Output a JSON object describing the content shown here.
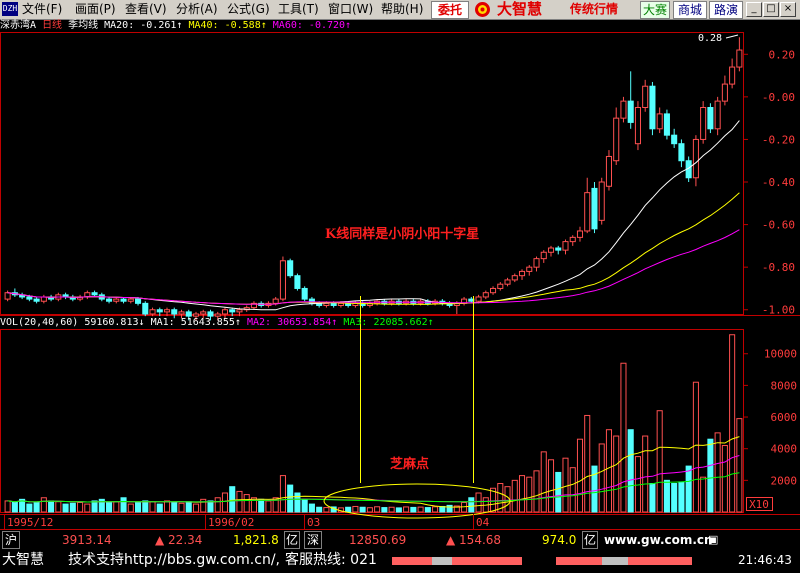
{
  "menu": {
    "items": [
      "文件(F)",
      "画面(P)",
      "查看(V)",
      "分析(A)",
      "公式(G)",
      "工具(T)",
      "窗口(W)",
      "帮助(H)"
    ],
    "weituo": "委托",
    "brand": "大智慧",
    "brand_sub": "传统行情",
    "buttons": [
      "大赛",
      "商城",
      "路演"
    ],
    "win_buttons": [
      "_",
      "□",
      "×"
    ]
  },
  "header": {
    "stock": "深赤湾A",
    "period": "日线",
    "avg_type": "季均线",
    "ma20_label": "MA20:",
    "ma20_value": "-0.261↑",
    "ma40_label": "MA40:",
    "ma40_value": "-0.588↑",
    "ma60_label": "MA60:",
    "ma60_value": "-0.720↑"
  },
  "vol_header": {
    "label": "VOL(20,40,60)",
    "value": "59160.813↓",
    "ma1_label": "MA1:",
    "ma1_value": "51643.855↑",
    "ma2_label": "MA2:",
    "ma2_value": "30653.854↑",
    "ma3_label": "MA3:",
    "ma3_value": "22085.662↑"
  },
  "colors": {
    "up": "#ff5050",
    "down": "#54ffff",
    "ma20": "#ffffff",
    "ma40": "#ffff00",
    "ma60": "#ff00ff",
    "grid": "#c00000",
    "axis_text": "#ff3c3c",
    "annot": "#ff2020"
  },
  "chart_data": [
    {
      "type": "candlestick",
      "title": "深赤湾A 日线",
      "y_axis_ticks": [
        "0.20",
        "-0.00",
        "-0.20",
        "-0.40",
        "-0.60",
        "-0.80",
        "-1.00"
      ],
      "y_range": [
        -1.02,
        0.3
      ],
      "x_labels": [
        "1995/12",
        "1996/02",
        "03",
        "04"
      ],
      "max_label": "0.28",
      "annotation": "K线同样是小阴小阳十字星",
      "series": [
        {
          "name": "MA20",
          "last_value": -0.261
        },
        {
          "name": "MA40",
          "last_value": -0.588
        },
        {
          "name": "MA60",
          "last_value": -0.72
        }
      ],
      "candles": [
        [
          -0.95,
          -0.92,
          -0.96,
          -0.91
        ],
        [
          -0.92,
          -0.93,
          -0.94,
          -0.9
        ],
        [
          -0.93,
          -0.94,
          -0.95,
          -0.92
        ],
        [
          -0.94,
          -0.95,
          -0.96,
          -0.93
        ],
        [
          -0.95,
          -0.96,
          -0.97,
          -0.94
        ],
        [
          -0.96,
          -0.94,
          -0.97,
          -0.93
        ],
        [
          -0.94,
          -0.95,
          -0.96,
          -0.93
        ],
        [
          -0.95,
          -0.93,
          -0.96,
          -0.92
        ],
        [
          -0.93,
          -0.94,
          -0.95,
          -0.92
        ],
        [
          -0.94,
          -0.95,
          -0.96,
          -0.93
        ],
        [
          -0.95,
          -0.94,
          -0.96,
          -0.93
        ],
        [
          -0.94,
          -0.92,
          -0.95,
          -0.91
        ],
        [
          -0.92,
          -0.93,
          -0.94,
          -0.91
        ],
        [
          -0.93,
          -0.95,
          -0.96,
          -0.92
        ],
        [
          -0.95,
          -0.96,
          -0.97,
          -0.94
        ],
        [
          -0.96,
          -0.95,
          -0.97,
          -0.94
        ],
        [
          -0.95,
          -0.96,
          -0.97,
          -0.94
        ],
        [
          -0.96,
          -0.95,
          -0.97,
          -0.94
        ],
        [
          -0.95,
          -0.97,
          -0.98,
          -0.94
        ],
        [
          -0.97,
          -1.02,
          -1.03,
          -0.96
        ],
        [
          -1.02,
          -1.0,
          -1.03,
          -0.99
        ],
        [
          -1.0,
          -1.01,
          -1.03,
          -0.99
        ],
        [
          -1.01,
          -1.0,
          -1.03,
          -0.99
        ],
        [
          -1.0,
          -1.02,
          -1.04,
          -0.99
        ],
        [
          -1.02,
          -1.01,
          -1.04,
          -1.0
        ],
        [
          -1.01,
          -1.03,
          -1.05,
          -1.0
        ],
        [
          -1.03,
          -1.02,
          -1.05,
          -1.01
        ],
        [
          -1.02,
          -1.01,
          -1.04,
          -1.0
        ],
        [
          -1.01,
          -1.03,
          -1.05,
          -1.0
        ],
        [
          -1.03,
          -1.02,
          -1.05,
          -1.01
        ],
        [
          -1.02,
          -1.0,
          -1.04,
          -0.99
        ],
        [
          -1.0,
          -1.01,
          -1.03,
          -0.99
        ],
        [
          -1.01,
          -1.0,
          -1.03,
          -0.99
        ],
        [
          -1.0,
          -0.99,
          -1.01,
          -0.98
        ],
        [
          -0.99,
          -0.97,
          -1.0,
          -0.96
        ],
        [
          -0.97,
          -0.98,
          -0.99,
          -0.96
        ],
        [
          -0.98,
          -0.97,
          -0.99,
          -0.96
        ],
        [
          -0.97,
          -0.95,
          -0.98,
          -0.94
        ],
        [
          -0.95,
          -0.77,
          -0.96,
          -0.75
        ],
        [
          -0.77,
          -0.84,
          -0.85,
          -0.76
        ],
        [
          -0.84,
          -0.9,
          -0.91,
          -0.83
        ],
        [
          -0.9,
          -0.95,
          -0.96,
          -0.89
        ],
        [
          -0.95,
          -0.97,
          -0.98,
          -0.94
        ],
        [
          -0.97,
          -0.98,
          -0.99,
          -0.96
        ],
        [
          -0.98,
          -0.97,
          -0.99,
          -0.96
        ],
        [
          -0.97,
          -0.98,
          -0.99,
          -0.96
        ],
        [
          -0.98,
          -0.97,
          -0.99,
          -0.96
        ],
        [
          -0.97,
          -0.98,
          -0.99,
          -0.96
        ],
        [
          -0.98,
          -0.97,
          -0.99,
          -0.96
        ],
        [
          -0.97,
          -0.98,
          -0.99,
          -0.96
        ],
        [
          -0.98,
          -0.97,
          -0.99,
          -0.96
        ],
        [
          -0.97,
          -0.96,
          -0.98,
          -0.95
        ],
        [
          -0.96,
          -0.97,
          -0.98,
          -0.95
        ],
        [
          -0.97,
          -0.96,
          -0.98,
          -0.95
        ],
        [
          -0.96,
          -0.97,
          -0.98,
          -0.95
        ],
        [
          -0.97,
          -0.96,
          -0.98,
          -0.95
        ],
        [
          -0.96,
          -0.97,
          -0.98,
          -0.95
        ],
        [
          -0.97,
          -0.96,
          -0.98,
          -0.95
        ],
        [
          -0.96,
          -0.97,
          -0.98,
          -0.95
        ],
        [
          -0.97,
          -0.96,
          -0.98,
          -0.95
        ],
        [
          -0.96,
          -0.97,
          -0.98,
          -0.95
        ],
        [
          -0.97,
          -0.98,
          -0.99,
          -0.96
        ],
        [
          -0.98,
          -0.97,
          -1.02,
          -0.96
        ],
        [
          -0.97,
          -0.95,
          -0.98,
          -0.94
        ],
        [
          -0.95,
          -0.96,
          -0.97,
          -0.94
        ],
        [
          -0.96,
          -0.94,
          -0.97,
          -0.93
        ],
        [
          -0.94,
          -0.92,
          -0.95,
          -0.91
        ],
        [
          -0.92,
          -0.9,
          -0.93,
          -0.89
        ],
        [
          -0.9,
          -0.88,
          -0.91,
          -0.87
        ],
        [
          -0.88,
          -0.86,
          -0.89,
          -0.85
        ],
        [
          -0.86,
          -0.84,
          -0.87,
          -0.83
        ],
        [
          -0.84,
          -0.82,
          -0.86,
          -0.81
        ],
        [
          -0.82,
          -0.8,
          -0.84,
          -0.79
        ],
        [
          -0.8,
          -0.76,
          -0.82,
          -0.75
        ],
        [
          -0.76,
          -0.73,
          -0.78,
          -0.72
        ],
        [
          -0.73,
          -0.71,
          -0.75,
          -0.7
        ],
        [
          -0.71,
          -0.72,
          -0.74,
          -0.7
        ],
        [
          -0.72,
          -0.68,
          -0.74,
          -0.67
        ],
        [
          -0.68,
          -0.66,
          -0.7,
          -0.65
        ],
        [
          -0.66,
          -0.63,
          -0.68,
          -0.61
        ],
        [
          -0.63,
          -0.45,
          -0.64,
          -0.38
        ],
        [
          -0.43,
          -0.62,
          -0.64,
          -0.4
        ],
        [
          -0.58,
          -0.4,
          -0.6,
          -0.38
        ],
        [
          -0.42,
          -0.28,
          -0.44,
          -0.25
        ],
        [
          -0.3,
          -0.1,
          -0.32,
          -0.05
        ],
        [
          -0.1,
          -0.02,
          -0.12,
          0.0
        ],
        [
          -0.02,
          -0.12,
          -0.15,
          0.12
        ],
        [
          -0.22,
          -0.05,
          -0.25,
          -0.02
        ],
        [
          -0.05,
          0.05,
          -0.07,
          0.08
        ],
        [
          0.05,
          -0.15,
          -0.18,
          0.07
        ],
        [
          -0.15,
          -0.08,
          -0.17,
          -0.05
        ],
        [
          -0.08,
          -0.18,
          -0.2,
          -0.06
        ],
        [
          -0.18,
          -0.22,
          -0.24,
          -0.15
        ],
        [
          -0.22,
          -0.3,
          -0.33,
          -0.2
        ],
        [
          -0.3,
          -0.38,
          -0.4,
          -0.28
        ],
        [
          -0.38,
          -0.2,
          -0.42,
          -0.18
        ],
        [
          -0.2,
          -0.05,
          -0.22,
          -0.02
        ],
        [
          -0.05,
          -0.15,
          -0.17,
          -0.03
        ],
        [
          -0.15,
          -0.02,
          -0.18,
          0.0
        ],
        [
          -0.02,
          0.06,
          -0.04,
          0.1
        ],
        [
          0.06,
          0.14,
          0.04,
          0.18
        ],
        [
          0.14,
          0.22,
          0.12,
          0.28
        ]
      ]
    },
    {
      "type": "bar",
      "title": "VOL(20,40,60)",
      "y_axis_ticks": [
        "10000",
        "8000",
        "6000",
        "4000",
        "2000"
      ],
      "y_range": [
        0,
        11500
      ],
      "unit_label": "X10",
      "annotation": "芝麻点",
      "series": [
        {
          "name": "VOL",
          "last_value": 59160.813
        },
        {
          "name": "MA1",
          "last_value": 51643.855
        },
        {
          "name": "MA2",
          "last_value": 30653.854
        },
        {
          "name": "MA3",
          "last_value": 22085.662
        }
      ],
      "values": [
        700,
        600,
        800,
        500,
        600,
        900,
        700,
        650,
        500,
        550,
        600,
        500,
        700,
        800,
        600,
        650,
        900,
        500,
        600,
        700,
        650,
        500,
        700,
        600,
        550,
        650,
        500,
        800,
        700,
        900,
        1200,
        1600,
        1300,
        1100,
        900,
        800,
        700,
        900,
        2300,
        1700,
        1200,
        800,
        500,
        300,
        280,
        320,
        260,
        300,
        350,
        300,
        270,
        330,
        280,
        300,
        260,
        320,
        290,
        310,
        280,
        330,
        350,
        420,
        380,
        600,
        900,
        1200,
        900,
        1500,
        1800,
        1600,
        2000,
        2300,
        2200,
        2600,
        3800,
        3300,
        2500,
        3400,
        2800,
        4600,
        6100,
        2900,
        4300,
        5200,
        4800,
        9400,
        5200,
        3500,
        4800,
        1800,
        6400,
        2000,
        1800,
        1900,
        2900,
        8200,
        2200,
        4600,
        5000,
        4200,
        11200,
        5900
      ]
    }
  ],
  "ticker": {
    "sh_label": "沪",
    "sh_index": "3913.14",
    "sh_change": "▲ 22.34",
    "sh_amount": "1,821.8",
    "yi": "亿",
    "sz_label": "深",
    "sz_index": "12850.69",
    "sz_change": "▲ 154.68",
    "sz_amount": "974.0",
    "site": "www.gw.com.cn",
    "app_name": "大智慧",
    "support": "技术支持http://bbs.gw.com.cn/,",
    "hotline": "客服热线: 021",
    "time": "21:46:43"
  }
}
